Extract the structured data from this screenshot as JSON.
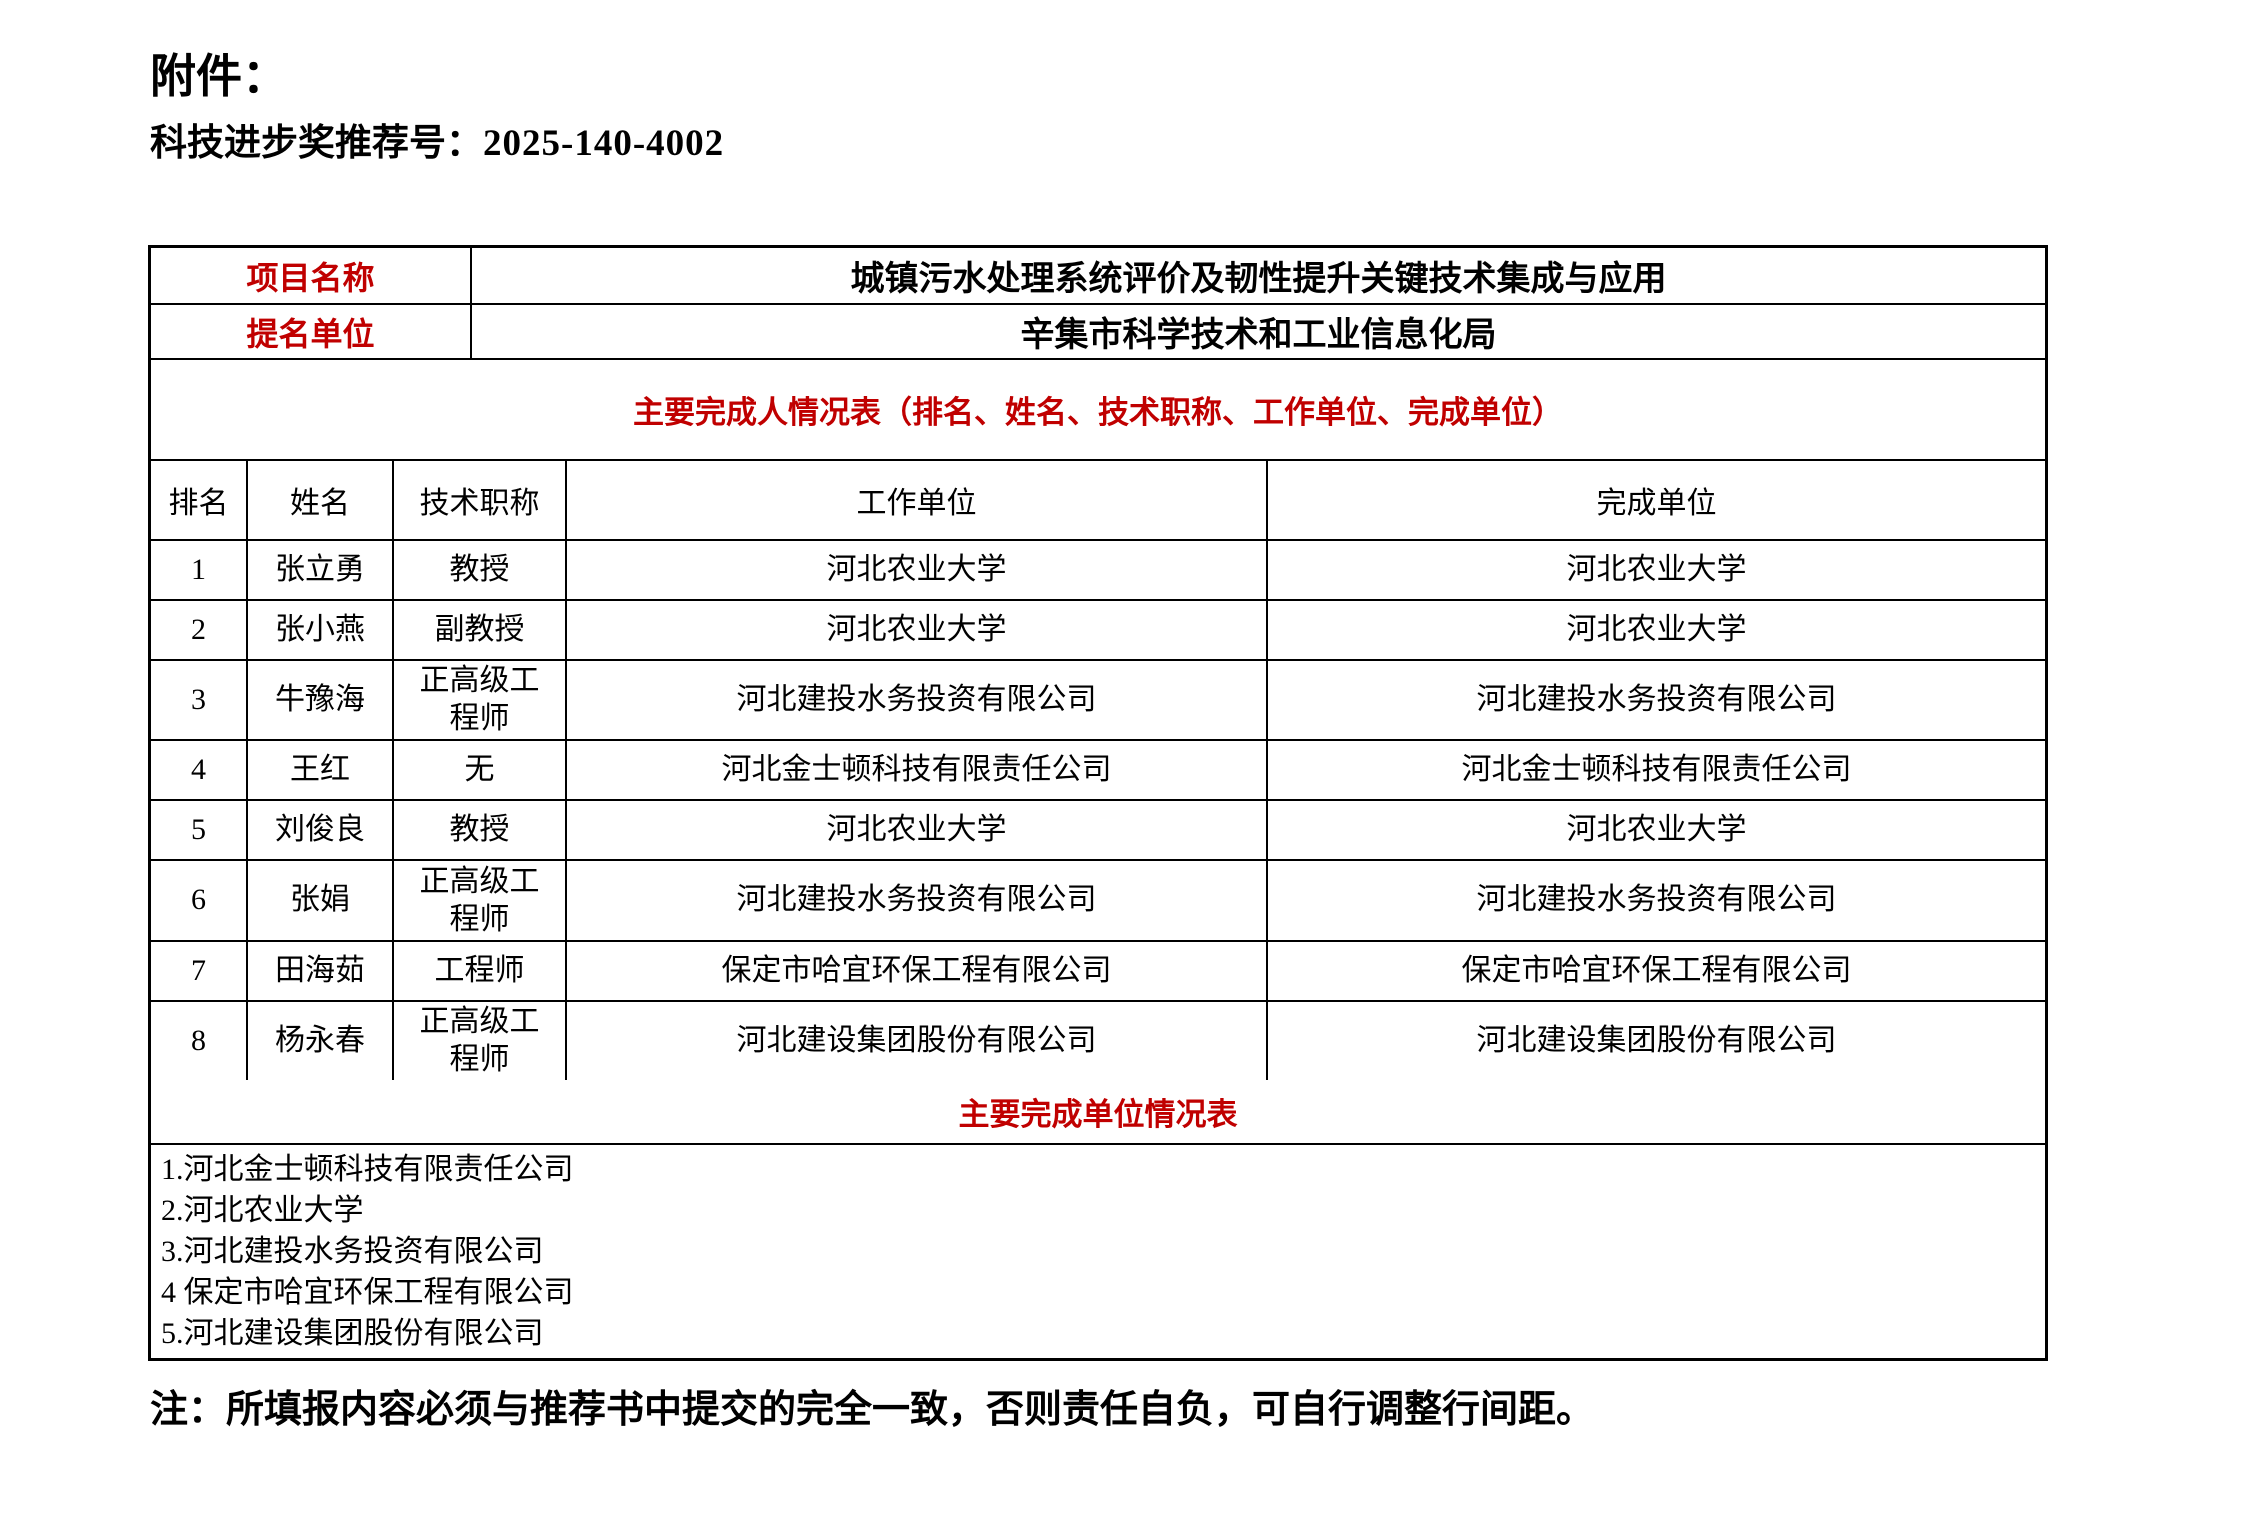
{
  "page": {
    "attachment_label": "附件：",
    "recommendation_label": "科技进步奖推荐号：",
    "recommendation_number": "2025-140-4002",
    "note": "注：所填报内容必须与推荐书中提交的完全一致，否则责任自负，可自行调整行间距。"
  },
  "colors": {
    "accent_red": "#C00000",
    "border_black": "#000000",
    "background": "#FFFFFF"
  },
  "info_rows": [
    {
      "label": "项目名称",
      "value": "城镇污水处理系统评价及韧性提升关键技术集成与应用"
    },
    {
      "label": "提名单位",
      "value": "辛集市科学技术和工业信息化局"
    }
  ],
  "person_section": {
    "title": "主要完成人情况表（排名、姓名、技术职称、工作单位、完成单位）",
    "headers": [
      "排名",
      "姓名",
      "技术职称",
      "工作单位",
      "完成单位"
    ],
    "rows": [
      {
        "rank": "1",
        "name": "张立勇",
        "title": "教授",
        "work_unit": "河北农业大学",
        "completion_unit": "河北农业大学"
      },
      {
        "rank": "2",
        "name": "张小燕",
        "title": "副教授",
        "work_unit": "河北农业大学",
        "completion_unit": "河北农业大学"
      },
      {
        "rank": "3",
        "name": "牛豫海",
        "title": "正高级工程师",
        "work_unit": "河北建投水务投资有限公司",
        "completion_unit": "河北建投水务投资有限公司"
      },
      {
        "rank": "4",
        "name": "王红",
        "title": "无",
        "work_unit": "河北金士顿科技有限责任公司",
        "completion_unit": "河北金士顿科技有限责任公司"
      },
      {
        "rank": "5",
        "name": "刘俊良",
        "title": "教授",
        "work_unit": "河北农业大学",
        "completion_unit": "河北农业大学"
      },
      {
        "rank": "6",
        "name": "张娟",
        "title": "正高级工程师",
        "work_unit": "河北建投水务投资有限公司",
        "completion_unit": "河北建投水务投资有限公司"
      },
      {
        "rank": "7",
        "name": "田海茹",
        "title": "工程师",
        "work_unit": "保定市哈宜环保工程有限公司",
        "completion_unit": "保定市哈宜环保工程有限公司"
      },
      {
        "rank": "8",
        "name": "杨永春",
        "title": "正高级工程师",
        "work_unit": "河北建设集团股份有限公司",
        "completion_unit": "河北建设集团股份有限公司"
      }
    ]
  },
  "unit_section": {
    "title": "主要完成单位情况表",
    "units": [
      "1.河北金士顿科技有限责任公司",
      "2.河北农业大学",
      "3.河北建投水务投资有限公司",
      "4 保定市哈宜环保工程有限公司",
      "5.河北建设集团股份有限公司"
    ]
  }
}
